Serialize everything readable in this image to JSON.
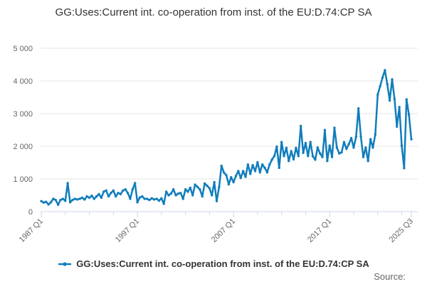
{
  "title": "GG:Uses:Current int. co-operation from inst. of the EU:D.74:CP SA",
  "legend": {
    "series_label": "GG:Uses:Current int. co-operation from inst. of the EU:D.74:CP SA"
  },
  "source_label": "Source:",
  "colors": {
    "line": "#117dbb",
    "grid": "#e6e6e6",
    "axis": "#ccd6eb",
    "title_text": "#333333",
    "axis_text": "#666666"
  },
  "chart_data": {
    "type": "line",
    "title": "GG:Uses:Current int. co-operation from inst. of the EU:D.74:CP SA",
    "series": [
      {
        "name": "GG:Uses:Current int. co-operation from inst. of the EU:D.74:CP SA",
        "frequency": "quarterly",
        "x_start": "1987 Q1",
        "x_end": "2025 Q3",
        "values": [
          320,
          275,
          300,
          220,
          285,
          390,
          355,
          210,
          355,
          390,
          330,
          870,
          285,
          355,
          390,
          370,
          390,
          425,
          370,
          465,
          425,
          485,
          390,
          465,
          535,
          425,
          610,
          645,
          465,
          570,
          645,
          465,
          570,
          535,
          645,
          680,
          570,
          390,
          680,
          870,
          285,
          430,
          465,
          390,
          390,
          355,
          405,
          370,
          390,
          335,
          405,
          240,
          610,
          500,
          550,
          680,
          500,
          550,
          570,
          390,
          680,
          610,
          730,
          500,
          825,
          755,
          680,
          465,
          860,
          790,
          715,
          500,
          900,
          320,
          750,
          1400,
          1195,
          1115,
          835,
          1050,
          900,
          1090,
          1240,
          1030,
          1240,
          1065,
          1440,
          1155,
          1420,
          1240,
          1510,
          1200,
          1440,
          1340,
          1200,
          1440,
          1590,
          1700,
          1990,
          1340,
          2130,
          1700,
          1950,
          1550,
          1850,
          1600,
          1950,
          1700,
          2620,
          1800,
          2100,
          1700,
          2130,
          1695,
          1590,
          1960,
          1780,
          1670,
          2495,
          1550,
          2020,
          1670,
          2565,
          1960,
          1780,
          1815,
          2130,
          1920,
          2070,
          2250,
          1960,
          2290,
          3160,
          2290,
          1670,
          1960,
          1550,
          2215,
          1960,
          2360,
          3580,
          3835,
          4100,
          4330,
          3900,
          3400,
          4050,
          3450,
          2600,
          3200,
          2020,
          1330,
          3435,
          2965,
          2215
        ]
      }
    ],
    "xlabel": "",
    "ylabel": "",
    "ylim": [
      0,
      5000
    ],
    "y_ticks": [
      {
        "value": 0,
        "label": "0"
      },
      {
        "value": 1000,
        "label": "1 000"
      },
      {
        "value": 2000,
        "label": "2 000"
      },
      {
        "value": 3000,
        "label": "3 000"
      },
      {
        "value": 4000,
        "label": "4 000"
      },
      {
        "value": 5000,
        "label": "5 000"
      }
    ],
    "x_labeled_ticks": [
      {
        "index": 0,
        "label": "1987 Q1"
      },
      {
        "index": 40,
        "label": "1997 Q1"
      },
      {
        "index": 80,
        "label": "2007 Q1"
      },
      {
        "index": 120,
        "label": "2017 Q1"
      },
      {
        "index": 154,
        "label": "2025 Q3"
      }
    ],
    "minor_tick_every_quarters": 10,
    "grid": "horizontal",
    "legend_position": "bottom-center",
    "x_label_rotation_deg": -45
  }
}
